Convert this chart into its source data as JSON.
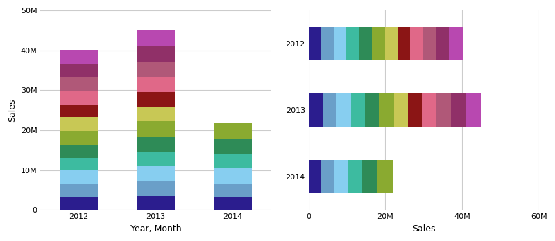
{
  "years": [
    "2012",
    "2013",
    "2014"
  ],
  "colors": [
    "#2b1d8e",
    "#6a9fc8",
    "#87cef0",
    "#3dbba0",
    "#2e8b57",
    "#8aaa30",
    "#c8c855",
    "#8b1515",
    "#e06888",
    "#b05878",
    "#903068",
    "#b848b0"
  ],
  "monthly_values": {
    "2012": [
      3200000,
      3300000,
      3400000,
      3200000,
      3300000,
      3500000,
      3400000,
      3200000,
      3300000,
      3500000,
      3300000,
      3600000
    ],
    "2013": [
      3600000,
      3700000,
      3800000,
      3500000,
      3700000,
      3900000,
      3600000,
      3800000,
      3700000,
      3800000,
      3900000,
      4000000
    ],
    "2014": [
      3200000,
      3400000,
      3800000,
      3600000,
      3800000,
      4200000,
      0,
      0,
      0,
      0,
      0,
      0
    ]
  },
  "xlabel_left": "Year, Month",
  "ylabel_left": "Sales",
  "xlabel_right": "Sales",
  "bg_color": "#ffffff",
  "grid_color": "#cccccc"
}
